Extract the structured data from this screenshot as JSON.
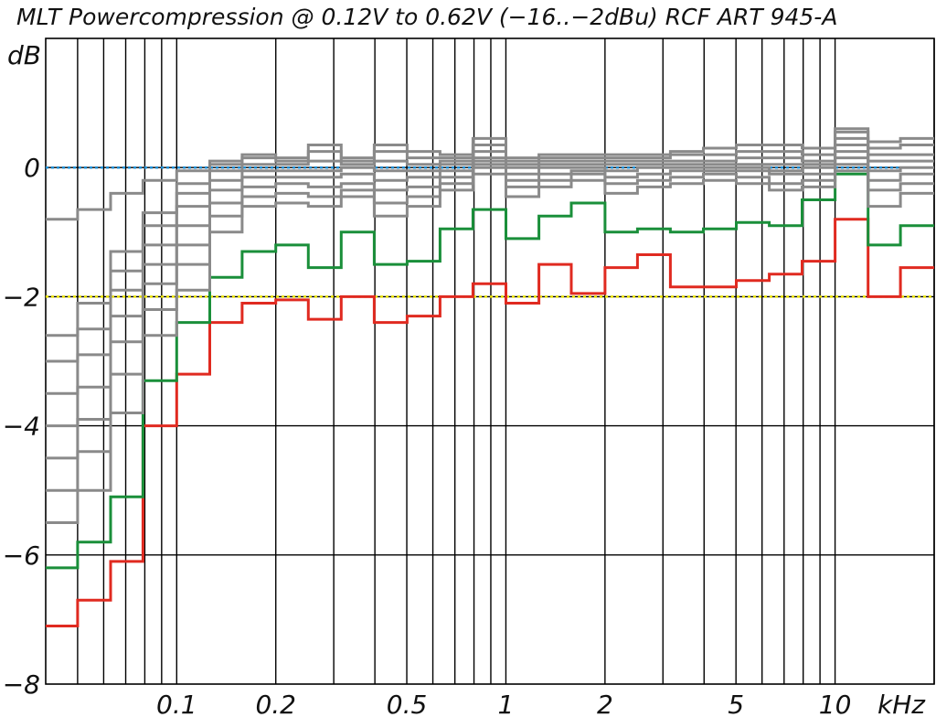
{
  "chart_data": {
    "type": "line",
    "title": "MLT Powercompression @ 0.12V to 0.62V (−16..−2dBu)  RCF ART 945-A",
    "ylabel": "dB",
    "xlabel": "kHz",
    "x_scale": "log",
    "xlim": [
      0.04,
      20
    ],
    "ylim": [
      -8,
      2
    ],
    "grid": true,
    "x_grid_values": [
      0.05,
      0.06,
      0.07,
      0.08,
      0.09,
      0.1,
      0.2,
      0.3,
      0.4,
      0.5,
      0.6,
      0.7,
      0.8,
      0.9,
      1,
      2,
      3,
      4,
      5,
      6,
      7,
      8,
      9,
      10,
      20
    ],
    "y_ticks": [
      {
        "value": 0,
        "label": "0"
      },
      {
        "value": -2,
        "label": "−2"
      },
      {
        "value": -4,
        "label": "−4"
      },
      {
        "value": -6,
        "label": "−6"
      },
      {
        "value": -8,
        "label": "−8"
      }
    ],
    "x_ticks": [
      {
        "value": 0.1,
        "label": "0.1"
      },
      {
        "value": 0.2,
        "label": "0.2"
      },
      {
        "value": 0.5,
        "label": "0.5"
      },
      {
        "value": 1,
        "label": "1"
      },
      {
        "value": 2,
        "label": "2"
      },
      {
        "value": 5,
        "label": "5"
      },
      {
        "value": 10,
        "label": "10"
      }
    ],
    "reference_lines": [
      {
        "value": 0,
        "color": "#1f8fd6",
        "style": "dotted"
      },
      {
        "value": -2,
        "color": "#e8e000",
        "style": "dotted"
      }
    ],
    "band_edges": [
      0.04,
      0.05,
      0.063,
      0.079,
      0.1,
      0.126,
      0.158,
      0.2,
      0.251,
      0.316,
      0.398,
      0.501,
      0.631,
      0.794,
      1.0,
      1.26,
      1.58,
      2.0,
      2.51,
      3.16,
      3.98,
      5.01,
      6.31,
      7.94,
      10.0,
      12.6,
      15.8,
      20.0
    ],
    "series": [
      {
        "color": "#e02a20",
        "values": [
          -7.1,
          -6.7,
          -6.1,
          -4.0,
          -3.2,
          -2.4,
          -2.1,
          -2.05,
          -2.35,
          -2.0,
          -2.4,
          -2.3,
          -2.0,
          -1.8,
          -2.1,
          -1.5,
          -1.95,
          -1.55,
          -1.35,
          -1.85,
          -1.85,
          -1.75,
          -1.65,
          -1.45,
          -0.8,
          -2.0,
          -1.55
        ]
      },
      {
        "color": "#1a8f3a",
        "values": [
          -6.2,
          -5.8,
          -5.1,
          -3.3,
          -2.4,
          -1.7,
          -1.3,
          -1.2,
          -1.55,
          -1.0,
          -1.5,
          -1.45,
          -0.95,
          -0.65,
          -1.1,
          -0.75,
          -0.55,
          -1.0,
          -0.95,
          -1.0,
          -0.95,
          -0.85,
          -0.9,
          -0.5,
          -0.1,
          -1.2,
          -0.9
        ]
      },
      {
        "color": "#8a8a8a",
        "values": [
          -5.5,
          -5.0,
          -3.8,
          -2.6,
          -1.9,
          -1.0,
          -0.6,
          -0.55,
          -0.6,
          -0.45,
          -0.75,
          -0.6,
          -0.35,
          -0.1,
          -0.45,
          -0.3,
          -0.2,
          -0.4,
          -0.3,
          -0.25,
          -0.2,
          -0.25,
          -0.35,
          -0.3,
          -0.05,
          -0.6,
          -0.4
        ]
      },
      {
        "color": "#8a8a8a",
        "values": [
          -5.0,
          -4.4,
          -3.2,
          -2.2,
          -1.5,
          -0.75,
          -0.45,
          -0.4,
          -0.45,
          -0.35,
          -0.55,
          -0.45,
          -0.25,
          0.0,
          -0.3,
          -0.2,
          -0.1,
          -0.25,
          -0.2,
          -0.15,
          -0.1,
          -0.15,
          -0.25,
          -0.2,
          0.05,
          -0.35,
          -0.25
        ]
      },
      {
        "color": "#8a8a8a",
        "values": [
          -4.5,
          -3.9,
          -2.7,
          -1.8,
          -1.2,
          -0.55,
          -0.3,
          -0.25,
          -0.3,
          -0.25,
          -0.35,
          -0.3,
          -0.15,
          0.05,
          -0.2,
          -0.1,
          -0.05,
          -0.15,
          -0.1,
          -0.05,
          -0.05,
          -0.05,
          -0.1,
          -0.1,
          0.15,
          -0.2,
          -0.1
        ]
      },
      {
        "color": "#8a8a8a",
        "values": [
          -4.0,
          -3.4,
          -2.3,
          -1.5,
          -0.9,
          -0.35,
          -0.15,
          -0.15,
          -0.15,
          -0.1,
          -0.2,
          -0.15,
          -0.05,
          0.1,
          -0.1,
          0.0,
          0.0,
          -0.05,
          0.0,
          0.0,
          0.0,
          0.0,
          -0.05,
          0.0,
          0.25,
          -0.05,
          0.0
        ]
      },
      {
        "color": "#8a8a8a",
        "values": [
          -3.5,
          -2.9,
          -1.9,
          -1.2,
          -0.6,
          -0.2,
          -0.05,
          -0.05,
          -0.05,
          0.0,
          -0.05,
          -0.05,
          0.05,
          0.15,
          0.0,
          0.05,
          0.05,
          0.05,
          0.05,
          0.05,
          0.05,
          0.05,
          0.05,
          0.05,
          0.35,
          0.1,
          0.1
        ]
      },
      {
        "color": "#8a8a8a",
        "values": [
          -3.0,
          -2.5,
          -1.6,
          -0.9,
          -0.4,
          -0.05,
          0.05,
          0.05,
          0.1,
          0.05,
          0.1,
          0.05,
          0.1,
          0.25,
          0.05,
          0.1,
          0.1,
          0.1,
          0.1,
          0.1,
          0.1,
          0.15,
          0.15,
          0.1,
          0.45,
          0.2,
          0.2
        ]
      },
      {
        "color": "#8a8a8a",
        "values": [
          -2.6,
          -2.1,
          -1.3,
          -0.7,
          -0.25,
          0.05,
          0.15,
          0.1,
          0.25,
          0.1,
          0.25,
          0.15,
          0.15,
          0.35,
          0.1,
          0.15,
          0.15,
          0.15,
          0.15,
          0.2,
          0.2,
          0.25,
          0.25,
          0.2,
          0.55,
          0.3,
          0.35
        ]
      },
      {
        "color": "#8a8a8a",
        "values": [
          -0.8,
          -0.65,
          -0.4,
          -0.2,
          -0.05,
          0.1,
          0.2,
          0.15,
          0.35,
          0.15,
          0.35,
          0.25,
          0.2,
          0.45,
          0.15,
          0.2,
          0.2,
          0.2,
          0.2,
          0.25,
          0.3,
          0.35,
          0.35,
          0.3,
          0.6,
          0.4,
          0.45
        ]
      }
    ]
  }
}
